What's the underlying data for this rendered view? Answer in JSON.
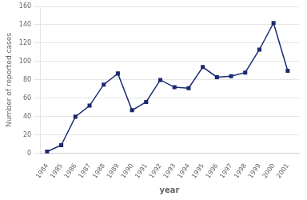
{
  "chart_data": {
    "type": "line",
    "x": [
      1984,
      1985,
      1986,
      1987,
      1988,
      1989,
      1990,
      1991,
      1992,
      1993,
      1994,
      1995,
      1996,
      1997,
      1998,
      1999,
      2000,
      2001
    ],
    "values": [
      2,
      9,
      40,
      52,
      75,
      87,
      47,
      56,
      80,
      72,
      71,
      94,
      83,
      84,
      88,
      113,
      142,
      90
    ],
    "color": "#1a2a6e",
    "marker": "square",
    "xlabel": "year",
    "ylabel": "Number of reported cases",
    "xlim": [
      1983.5,
      2001.8
    ],
    "xticks": [
      1984,
      1985,
      1986,
      1987,
      1988,
      1989,
      1990,
      1991,
      1992,
      1993,
      1994,
      1995,
      1996,
      1997,
      1998,
      1999,
      2000,
      2001
    ],
    "ylim": [
      0,
      160
    ],
    "yticks": [
      0,
      20,
      40,
      60,
      80,
      100,
      120,
      140,
      160
    ],
    "grid": "y"
  }
}
